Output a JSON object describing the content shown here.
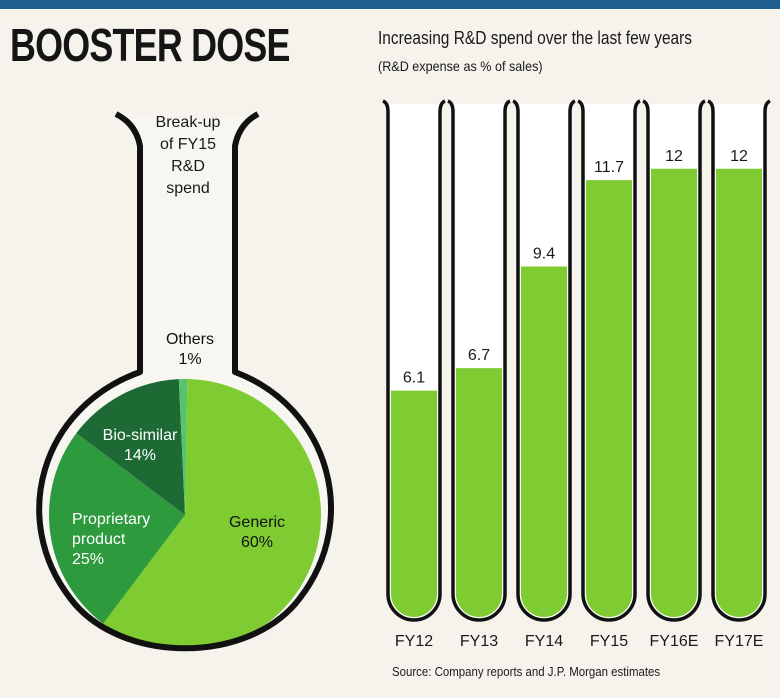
{
  "header": {
    "title": "BOOSTER DOSE"
  },
  "bar_chart_heading": {
    "title": "Increasing R&D spend over the last few years",
    "subtitle": "(R&D expense as % of sales)"
  },
  "source": "Source: Company reports and J.P. Morgan estimates",
  "colors": {
    "top_bar": "#1e5d8f",
    "generic": "#7fcc32",
    "proprietary": "#2e9a3e",
    "bio_similar": "#1d6a35",
    "others": "#56c46e",
    "tube_fill": "#7fcc32",
    "outline": "#111111"
  },
  "chart_data": [
    {
      "type": "pie",
      "title": "Break-up of FY15 R&D spend",
      "title_lines": [
        "Break-up",
        "of FY15",
        "R&D",
        "spend"
      ],
      "slices": [
        {
          "label_lines": [
            "Generic"
          ],
          "value": 60,
          "value_label": "60%"
        },
        {
          "label_lines": [
            "Proprietary",
            "product"
          ],
          "value": 25,
          "value_label": "25%"
        },
        {
          "label_lines": [
            "Bio-similar"
          ],
          "value": 14,
          "value_label": "14%"
        },
        {
          "label_lines": [
            "Others"
          ],
          "value": 1,
          "value_label": "1%"
        }
      ]
    },
    {
      "type": "bar",
      "title": "Increasing R&D spend over the last few years",
      "ylabel": "R&D expense as % of sales",
      "categories": [
        "FY12",
        "FY13",
        "FY14",
        "FY15",
        "FY16E",
        "FY17E"
      ],
      "values": [
        6.1,
        6.7,
        9.4,
        11.7,
        12,
        12
      ],
      "value_labels": [
        "6.1",
        "6.7",
        "9.4",
        "11.7",
        "12",
        "12"
      ],
      "ylim": [
        0,
        12.5
      ],
      "grid": false,
      "legend": "none"
    }
  ]
}
